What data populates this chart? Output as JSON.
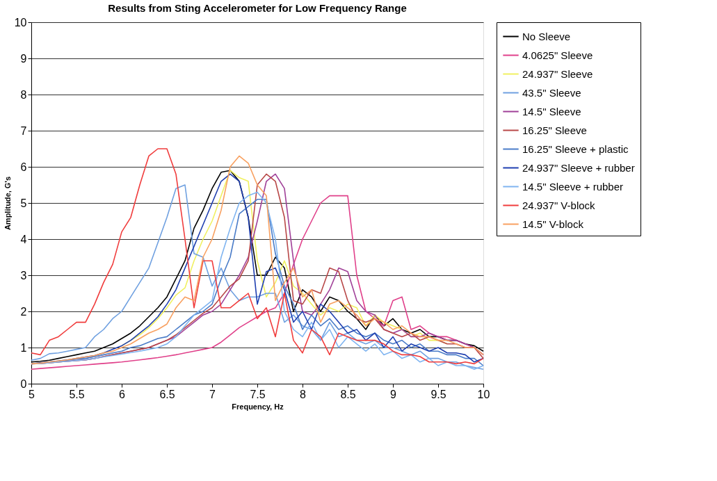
{
  "chart_data": {
    "type": "line",
    "title": "Results from Sting Accelerometer for Low Frequency Range",
    "xlabel": "Frequency, Hz",
    "ylabel": "Amplitude, G's",
    "x": [
      5.0,
      5.1,
      5.2,
      5.3,
      5.4,
      5.5,
      5.6,
      5.7,
      5.8,
      5.9,
      6.0,
      6.1,
      6.2,
      6.3,
      6.4,
      6.5,
      6.6,
      6.7,
      6.8,
      6.9,
      7.0,
      7.1,
      7.2,
      7.3,
      7.4,
      7.5,
      7.6,
      7.7,
      7.8,
      7.9,
      8.0,
      8.1,
      8.2,
      8.3,
      8.4,
      8.5,
      8.6,
      8.7,
      8.8,
      8.9,
      9.0,
      9.1,
      9.2,
      9.3,
      9.4,
      9.5,
      9.6,
      9.7,
      9.8,
      9.9,
      10.0
    ],
    "series": [
      {
        "name": "No Sleeve",
        "color": "#000000",
        "values": [
          0.6,
          0.62,
          0.65,
          0.7,
          0.75,
          0.8,
          0.85,
          0.9,
          1.0,
          1.1,
          1.25,
          1.4,
          1.6,
          1.85,
          2.1,
          2.4,
          2.9,
          3.4,
          4.3,
          4.8,
          5.4,
          5.85,
          5.9,
          5.6,
          4.6,
          3.0,
          3.0,
          3.5,
          3.2,
          2.0,
          2.6,
          2.4,
          2.0,
          2.4,
          2.3,
          2.0,
          1.8,
          1.5,
          1.9,
          1.6,
          1.8,
          1.5,
          1.4,
          1.5,
          1.3,
          1.3,
          1.2,
          1.2,
          1.1,
          1.05,
          0.9
        ]
      },
      {
        "name": "4.0625\" Sleeve",
        "color": "#e0408a",
        "values": [
          0.4,
          0.42,
          0.44,
          0.46,
          0.48,
          0.5,
          0.52,
          0.54,
          0.56,
          0.58,
          0.6,
          0.63,
          0.66,
          0.69,
          0.72,
          0.76,
          0.8,
          0.85,
          0.9,
          0.95,
          1.0,
          1.15,
          1.35,
          1.55,
          1.7,
          1.85,
          2.0,
          2.1,
          2.5,
          3.3,
          4.0,
          4.5,
          5.0,
          5.2,
          5.2,
          5.2,
          3.0,
          2.0,
          1.8,
          1.6,
          2.3,
          2.4,
          1.5,
          1.6,
          1.4,
          1.3,
          1.3,
          1.2,
          1.1,
          1.0,
          0.8
        ]
      },
      {
        "name": "24.937\" Sleeve",
        "color": "#f0f060",
        "values": [
          null,
          null,
          null,
          null,
          null,
          null,
          null,
          null,
          null,
          null,
          1.05,
          1.2,
          1.35,
          1.55,
          1.8,
          2.1,
          2.45,
          2.65,
          3.4,
          4.0,
          4.5,
          5.2,
          5.9,
          5.7,
          5.6,
          3.4,
          2.4,
          2.8,
          3.4,
          2.7,
          2.5,
          2.2,
          1.9,
          2.1,
          2.0,
          2.2,
          2.1,
          1.6,
          1.9,
          1.7,
          1.6,
          1.5,
          1.3,
          1.4,
          1.2,
          1.2,
          1.1,
          null,
          null,
          null,
          null
        ]
      },
      {
        "name": "43.5\" Sleeve",
        "color": "#6fa0e0",
        "values": [
          0.65,
          0.7,
          0.83,
          0.85,
          0.9,
          0.95,
          1.0,
          1.3,
          1.5,
          1.8,
          2.0,
          2.4,
          2.8,
          3.2,
          3.9,
          4.6,
          5.4,
          5.5,
          3.6,
          3.5,
          2.7,
          3.2,
          2.6,
          2.3,
          2.4,
          2.4,
          2.5,
          2.5,
          1.7,
          1.9,
          1.6,
          1.5,
          1.2,
          1.7,
          1.3,
          1.4,
          1.2,
          1.1,
          1.2,
          1.0,
          1.0,
          0.9,
          0.8,
          0.9,
          0.7,
          0.7,
          0.6,
          0.6,
          0.5,
          0.45,
          0.4
        ]
      },
      {
        "name": "14.5\" Sleeve",
        "color": "#a04098",
        "values": [
          0.55,
          0.56,
          0.58,
          0.6,
          0.62,
          0.64,
          0.66,
          0.7,
          0.75,
          0.8,
          0.85,
          0.9,
          0.95,
          1.0,
          1.1,
          1.2,
          1.3,
          1.5,
          1.7,
          1.9,
          2.0,
          2.2,
          2.6,
          3.0,
          3.5,
          4.5,
          5.6,
          5.8,
          5.4,
          3.4,
          2.0,
          1.9,
          2.2,
          2.6,
          3.2,
          3.1,
          2.3,
          2.0,
          1.9,
          1.5,
          1.4,
          1.5,
          1.3,
          1.3,
          1.4,
          1.3,
          1.2,
          1.2,
          1.1,
          1.0,
          0.8
        ]
      },
      {
        "name": "16.25\" Sleeve",
        "color": "#b84848",
        "values": [
          0.55,
          0.56,
          0.58,
          0.6,
          0.62,
          0.64,
          0.66,
          0.7,
          0.75,
          0.8,
          0.85,
          0.9,
          0.95,
          1.0,
          1.1,
          1.2,
          1.35,
          1.55,
          1.75,
          1.95,
          2.1,
          2.4,
          2.7,
          2.9,
          3.4,
          5.5,
          5.8,
          5.6,
          4.6,
          2.3,
          2.2,
          2.6,
          2.5,
          3.2,
          3.1,
          2.3,
          1.8,
          1.7,
          1.8,
          1.5,
          1.4,
          1.3,
          1.4,
          1.2,
          1.3,
          1.2,
          1.1,
          1.1,
          1.0,
          1.0,
          0.7
        ]
      },
      {
        "name": "16.25\" Sleeve + plastic",
        "color": "#4a7cc8",
        "values": [
          0.55,
          0.57,
          0.6,
          0.62,
          0.65,
          0.68,
          0.7,
          0.75,
          0.8,
          0.85,
          0.9,
          1.0,
          1.05,
          1.15,
          1.25,
          1.3,
          1.5,
          1.7,
          1.9,
          2.0,
          2.2,
          2.9,
          3.5,
          4.7,
          4.9,
          5.1,
          5.1,
          3.6,
          2.7,
          2.2,
          1.5,
          1.9,
          1.6,
          1.8,
          1.5,
          1.6,
          1.4,
          1.3,
          1.4,
          1.2,
          1.1,
          1.2,
          1.0,
          1.1,
          0.9,
          0.9,
          0.8,
          0.8,
          0.7,
          0.7,
          0.5
        ]
      },
      {
        "name": "24.937\" Sleeve + rubber",
        "color": "#1f3fb0",
        "values": [
          0.55,
          0.58,
          0.6,
          0.63,
          0.66,
          0.7,
          0.74,
          0.78,
          0.85,
          0.95,
          1.05,
          1.2,
          1.4,
          1.6,
          1.85,
          2.2,
          2.6,
          3.2,
          3.8,
          4.4,
          5.0,
          5.6,
          5.8,
          5.6,
          4.6,
          2.2,
          3.1,
          3.2,
          2.6,
          1.7,
          2.0,
          1.5,
          2.2,
          2.0,
          1.7,
          1.4,
          1.5,
          1.2,
          1.4,
          1.0,
          1.3,
          0.9,
          1.1,
          1.0,
          0.9,
          1.0,
          0.85,
          0.85,
          0.8,
          0.6,
          0.7
        ]
      },
      {
        "name": "14.5\" Sleeve + rubber",
        "color": "#7fb4f0",
        "values": [
          0.55,
          0.56,
          0.58,
          0.6,
          0.62,
          0.64,
          0.66,
          0.7,
          0.74,
          0.78,
          0.82,
          0.86,
          0.9,
          0.95,
          1.0,
          1.1,
          1.3,
          1.6,
          1.9,
          2.1,
          2.3,
          3.5,
          4.3,
          5.0,
          5.2,
          5.3,
          5.0,
          4.0,
          2.0,
          1.5,
          1.3,
          1.7,
          1.2,
          1.5,
          1.0,
          1.3,
          1.1,
          0.9,
          1.1,
          0.8,
          0.9,
          0.7,
          0.8,
          0.6,
          0.7,
          0.5,
          0.6,
          0.5,
          0.5,
          0.4,
          0.5
        ]
      },
      {
        "name": "24.937\" V-block",
        "color": "#f03c3c",
        "values": [
          0.85,
          0.8,
          1.2,
          1.3,
          1.5,
          1.7,
          1.7,
          2.2,
          2.8,
          3.3,
          4.2,
          4.6,
          5.5,
          6.3,
          6.5,
          6.5,
          5.8,
          4.0,
          2.1,
          3.4,
          3.4,
          2.1,
          2.1,
          2.3,
          2.5,
          1.8,
          2.1,
          1.3,
          2.5,
          1.2,
          0.85,
          1.5,
          1.3,
          0.8,
          1.4,
          1.3,
          1.2,
          1.2,
          1.2,
          1.1,
          0.9,
          0.8,
          0.8,
          0.75,
          0.6,
          0.6,
          0.6,
          0.55,
          0.6,
          0.55,
          0.7
        ]
      },
      {
        "name": "14.5\" V-block",
        "color": "#f8a060",
        "values": [
          0.55,
          0.57,
          0.6,
          0.63,
          0.66,
          0.7,
          0.74,
          0.78,
          0.85,
          0.9,
          1.0,
          1.1,
          1.25,
          1.4,
          1.5,
          1.65,
          2.1,
          2.4,
          2.3,
          3.5,
          4.0,
          4.8,
          6.0,
          6.3,
          6.1,
          5.5,
          5.2,
          2.3,
          2.8,
          3.2,
          2.4,
          2.6,
          1.7,
          2.2,
          2.3,
          2.1,
          1.9,
          1.6,
          1.8,
          1.7,
          1.5,
          1.6,
          1.4,
          1.3,
          1.3,
          1.2,
          1.2,
          1.1,
          1.0,
          1.0,
          0.8
        ]
      }
    ],
    "xlim": [
      5,
      10
    ],
    "xticks": [
      5,
      5.5,
      6,
      6.5,
      7,
      7.5,
      8,
      8.5,
      9,
      9.5,
      10
    ],
    "ylim": [
      0,
      10
    ],
    "yticks": [
      0,
      1,
      2,
      3,
      4,
      5,
      6,
      7,
      8,
      9,
      10
    ],
    "grid": "y",
    "legend": "right",
    "marker": "none",
    "line_style": "solid"
  }
}
